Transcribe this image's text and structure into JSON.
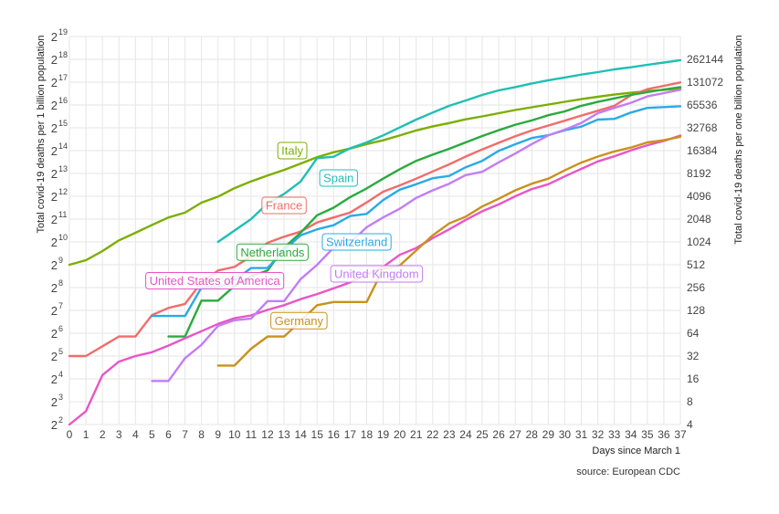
{
  "chart_data": {
    "type": "line",
    "xlabel": "Days since March 1",
    "ylabel_left": "Total covid-19 deaths per 1 billion population",
    "ylabel_right": "Total covid-19 deaths per one billion population",
    "source": "source: European CDC",
    "xlim": [
      0,
      37
    ],
    "ylim_log2": [
      2,
      19
    ],
    "y_scale": "log2",
    "grid": true,
    "x_ticks": [
      "0",
      "1",
      "2",
      "3",
      "4",
      "5",
      "6",
      "7",
      "8",
      "9",
      "10",
      "11",
      "12",
      "13",
      "14",
      "15",
      "16",
      "17",
      "18",
      "19",
      "20",
      "21",
      "22",
      "23",
      "24",
      "25",
      "26",
      "27",
      "28",
      "29",
      "30",
      "31",
      "32",
      "33",
      "34",
      "35",
      "36",
      "37"
    ],
    "left_ticks": [
      {
        "base": "2",
        "exp": "2",
        "value": 4
      },
      {
        "base": "2",
        "exp": "3",
        "value": 8
      },
      {
        "base": "2",
        "exp": "4",
        "value": 16
      },
      {
        "base": "2",
        "exp": "5",
        "value": 32
      },
      {
        "base": "2",
        "exp": "6",
        "value": 64
      },
      {
        "base": "2",
        "exp": "7",
        "value": 128
      },
      {
        "base": "2",
        "exp": "8",
        "value": 256
      },
      {
        "base": "2",
        "exp": "9",
        "value": 512
      },
      {
        "base": "2",
        "exp": "10",
        "value": 1024
      },
      {
        "base": "2",
        "exp": "11",
        "value": 2048
      },
      {
        "base": "2",
        "exp": "12",
        "value": 4096
      },
      {
        "base": "2",
        "exp": "13",
        "value": 8192
      },
      {
        "base": "2",
        "exp": "14",
        "value": 16384
      },
      {
        "base": "2",
        "exp": "15",
        "value": 32768
      },
      {
        "base": "2",
        "exp": "16",
        "value": 65536
      },
      {
        "base": "2",
        "exp": "17",
        "value": 131072
      },
      {
        "base": "2",
        "exp": "18",
        "value": 262144
      },
      {
        "base": "2",
        "exp": "19",
        "value": 524288
      }
    ],
    "right_ticks": [
      "4",
      "8",
      "16",
      "32",
      "64",
      "128",
      "256",
      "512",
      "1024",
      "2048",
      "4096",
      "8192",
      "16384",
      "32768",
      "65536",
      "131072",
      "262144"
    ],
    "series": [
      {
        "name": "Italy",
        "color": "#7cae00",
        "label_at": [
          13.5,
          14.0
        ],
        "x": [
          0,
          1,
          2,
          3,
          4,
          5,
          6,
          7,
          8,
          9,
          10,
          11,
          12,
          13,
          14,
          15,
          16,
          17,
          18,
          19,
          20,
          21,
          22,
          23,
          24,
          25,
          26,
          27,
          28,
          29,
          30,
          31,
          32,
          33,
          34,
          35,
          36,
          37
        ],
        "y": [
          512,
          588,
          776,
          1073,
          1353,
          1715,
          2151,
          2496,
          3370,
          4053,
          5243,
          6441,
          7707,
          9130,
          11014,
          13454,
          15574,
          17470,
          20016,
          22440,
          25930,
          30240,
          34260,
          37900,
          42400,
          46300,
          51000,
          56200,
          61200,
          66500,
          72200,
          78200,
          84000,
          89800,
          95000,
          99900,
          103900,
          108000
        ]
      },
      {
        "name": "Spain",
        "color": "#1fbfb4",
        "label_at": [
          16.3,
          12.8
        ],
        "x": [
          9,
          10,
          11,
          12,
          13,
          14,
          15,
          16,
          17,
          18,
          19,
          20,
          21,
          22,
          23,
          24,
          25,
          26,
          27,
          28,
          29,
          30,
          31,
          32,
          33,
          34,
          35,
          36,
          37
        ],
        "y": [
          1024,
          1448,
          2048,
          3300,
          4400,
          6400,
          13000,
          13600,
          17600,
          21000,
          26000,
          33000,
          42000,
          52000,
          64000,
          75000,
          89000,
          102000,
          113000,
          126000,
          139000,
          151000,
          165000,
          178000,
          193000,
          206000,
          222000,
          238000,
          256000
        ]
      },
      {
        "name": "France",
        "color": "#f06d6a",
        "label_at": [
          13.0,
          11.6
        ],
        "x": [
          0,
          1,
          2,
          3,
          4,
          5,
          6,
          7,
          8,
          9,
          10,
          11,
          12,
          13,
          14,
          15,
          16,
          17,
          18,
          19,
          20,
          21,
          22,
          23,
          24,
          25,
          26,
          27,
          28,
          29,
          30,
          31,
          32,
          33,
          34,
          35,
          36,
          37
        ],
        "y": [
          32,
          32,
          43,
          58,
          58,
          111,
          138,
          156,
          300,
          430,
          480,
          660,
          1000,
          1200,
          1400,
          1850,
          2150,
          2500,
          3400,
          4700,
          5700,
          7000,
          8700,
          10800,
          13700,
          17000,
          20800,
          25400,
          30200,
          35100,
          40700,
          47500,
          55000,
          64000,
          88000,
          106000,
          117000,
          130000
        ]
      },
      {
        "name": "Netherlands",
        "color": "#2aaa3e",
        "label_at": [
          12.3,
          9.55
        ],
        "x": [
          6,
          7,
          8,
          9,
          10,
          11,
          12,
          13,
          14,
          15,
          16,
          17,
          18,
          19,
          20,
          21,
          22,
          23,
          24,
          25,
          26,
          27,
          28,
          29,
          30,
          31,
          32,
          33,
          34,
          35,
          36,
          37
        ],
        "y": [
          58,
          58,
          172,
          172,
          270,
          360,
          430,
          860,
          1350,
          2300,
          2900,
          4000,
          5200,
          7000,
          9300,
          12000,
          14500,
          17300,
          21000,
          25500,
          30500,
          36000,
          41000,
          48000,
          54000,
          64000,
          72000,
          80000,
          89000,
          97000,
          105000,
          113000
        ]
      },
      {
        "name": "Switzerland",
        "color": "#2aaae6",
        "label_at": [
          17.4,
          10.0
        ],
        "x": [
          5,
          6,
          7,
          8,
          9,
          10,
          11,
          12,
          13,
          14,
          15,
          16,
          17,
          18,
          19,
          20,
          21,
          22,
          23,
          24,
          25,
          26,
          27,
          28,
          29,
          30,
          31,
          32,
          33,
          34,
          35,
          36,
          37
        ],
        "y": [
          108,
          108,
          108,
          256,
          256,
          320,
          464,
          464,
          800,
          1250,
          1500,
          1700,
          2250,
          2400,
          3650,
          5000,
          5900,
          7100,
          7600,
          9900,
          12000,
          16300,
          19900,
          24000,
          26200,
          30400,
          34000,
          42000,
          43000,
          52000,
          60000,
          61500,
          63000
        ]
      },
      {
        "name": "United States of America",
        "color": "#e955c7",
        "label_at": [
          8.8,
          8.3
        ],
        "x": [
          0,
          1,
          2,
          3,
          4,
          5,
          6,
          7,
          8,
          9,
          10,
          11,
          12,
          13,
          14,
          15,
          16,
          17,
          18,
          19,
          20,
          21,
          22,
          23,
          24,
          25,
          26,
          27,
          28,
          29,
          30,
          31,
          32,
          33,
          34,
          35,
          36,
          37
        ],
        "y": [
          4,
          6,
          18,
          27,
          32,
          36,
          44,
          55,
          68,
          85,
          101,
          110,
          130,
          150,
          180,
          210,
          250,
          300,
          380,
          480,
          690,
          850,
          1150,
          1500,
          2000,
          2600,
          3200,
          4100,
          5100,
          5900,
          7500,
          9400,
          11800,
          13800,
          16500,
          19300,
          22000,
          25900
        ]
      },
      {
        "name": "United Kingdom",
        "color": "#c27df5",
        "label_at": [
          18.6,
          8.6
        ],
        "x": [
          5,
          6,
          7,
          8,
          9,
          10,
          11,
          12,
          13,
          14,
          15,
          16,
          17,
          18,
          19,
          20,
          21,
          22,
          23,
          24,
          25,
          26,
          27,
          28,
          29,
          30,
          31,
          32,
          33,
          34,
          35,
          36,
          37
        ],
        "y": [
          15,
          15,
          30,
          45,
          80,
          95,
          100,
          170,
          170,
          330,
          510,
          860,
          1000,
          1600,
          2150,
          2800,
          3900,
          4900,
          6000,
          7800,
          8600,
          11500,
          15000,
          20000,
          26000,
          31000,
          38000,
          51000,
          60000,
          70000,
          85000,
          94000,
          104000
        ]
      },
      {
        "name": "Germany",
        "color": "#c9911c",
        "label_at": [
          13.9,
          6.55
        ],
        "x": [
          9,
          10,
          11,
          12,
          13,
          14,
          15,
          16,
          17,
          18,
          19,
          20,
          21,
          22,
          23,
          24,
          25,
          26,
          27,
          28,
          29,
          30,
          31,
          32,
          33,
          34,
          35,
          36,
          37
        ],
        "y": [
          24,
          24,
          40,
          58,
          58,
          92,
          150,
          165,
          165,
          165,
          450,
          500,
          790,
          1250,
          1800,
          2200,
          3000,
          3800,
          4900,
          6000,
          7000,
          9000,
          11400,
          13700,
          16000,
          18000,
          21000,
          22500,
          25000
        ]
      }
    ]
  }
}
